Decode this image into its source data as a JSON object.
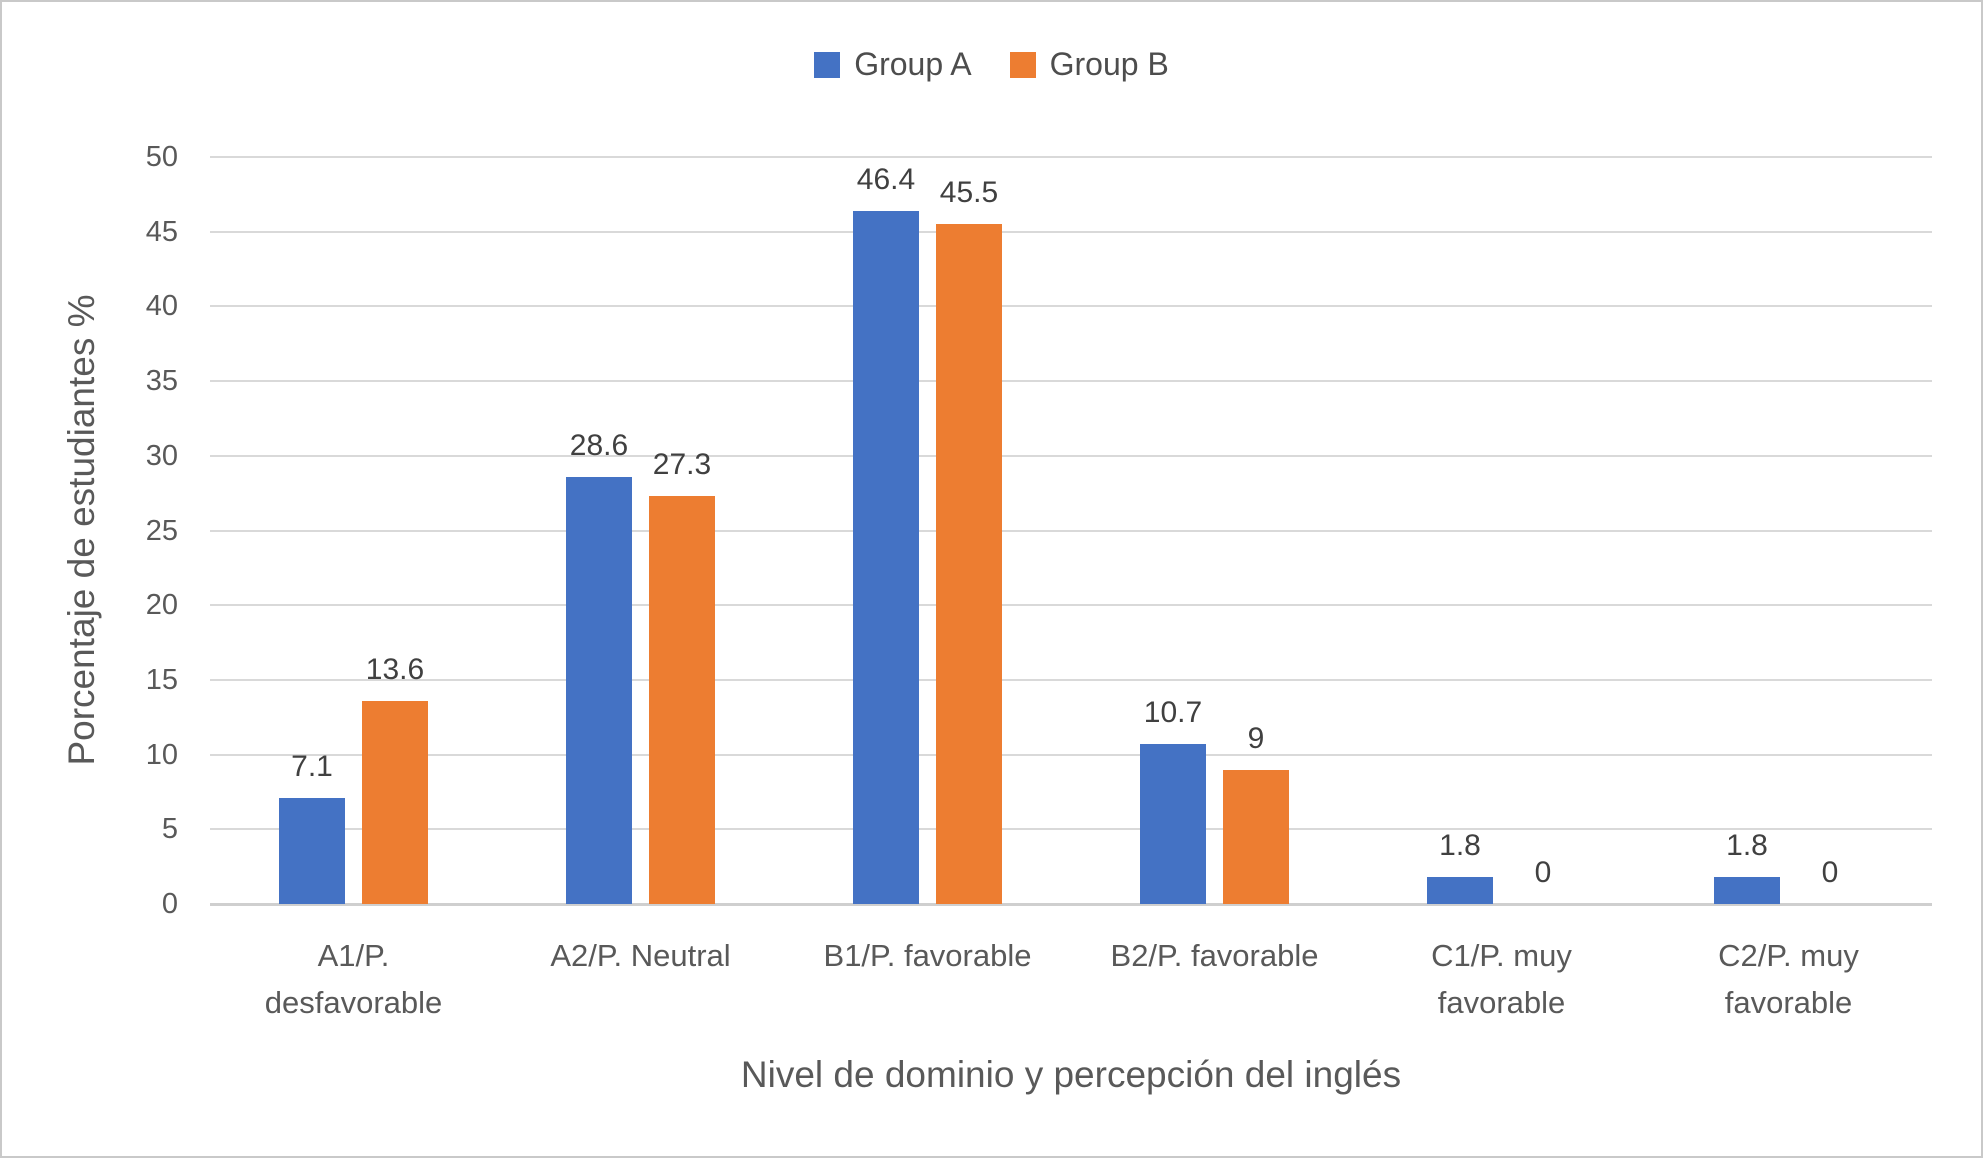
{
  "chart_data": {
    "type": "bar",
    "title": "",
    "categories": [
      "A1/P. desfavorable",
      "A2/P. Neutral",
      "B1/P. favorable",
      "B2/P. favorable",
      "C1/P. muy favorable",
      "C2/P. muy favorable"
    ],
    "category_display_lines": [
      [
        "A1/P.",
        "desfavorable"
      ],
      [
        "A2/P. Neutral"
      ],
      [
        "B1/P. favorable"
      ],
      [
        "B2/P. favorable"
      ],
      [
        "C1/P. muy",
        "favorable"
      ],
      [
        "C2/P. muy",
        "favorable"
      ]
    ],
    "series": [
      {
        "name": "Group A",
        "color": "#4472C4",
        "values": [
          7.1,
          28.6,
          46.4,
          10.7,
          1.8,
          1.8
        ],
        "data_labels": [
          "7.1",
          "28.6",
          "46.4",
          "10.7",
          "1.8",
          "1.8"
        ]
      },
      {
        "name": "Group B",
        "color": "#ED7D31",
        "values": [
          13.6,
          27.3,
          45.5,
          9,
          0,
          0
        ],
        "data_labels": [
          "13.6",
          "27.3",
          "45.5",
          "9",
          "0",
          "0"
        ]
      }
    ],
    "xlabel": "Nivel de dominio y percepción del inglés",
    "ylabel": "Porcentaje de estudiantes %",
    "ylim": [
      0,
      50
    ],
    "yticks": [
      0,
      5,
      10,
      15,
      20,
      25,
      30,
      35,
      40,
      45,
      50
    ],
    "grid": true,
    "legend_position": "top"
  },
  "colors": {
    "group_a": "#4472C4",
    "group_b": "#ED7D31",
    "gridline": "#D9D9D9",
    "axis_line": "#CFCFCF",
    "axis_text": "#595959",
    "data_label_text": "#404040",
    "legend_text": "#4D4D4D",
    "background": "#FFFFFF",
    "border": "#C9C9C9"
  }
}
